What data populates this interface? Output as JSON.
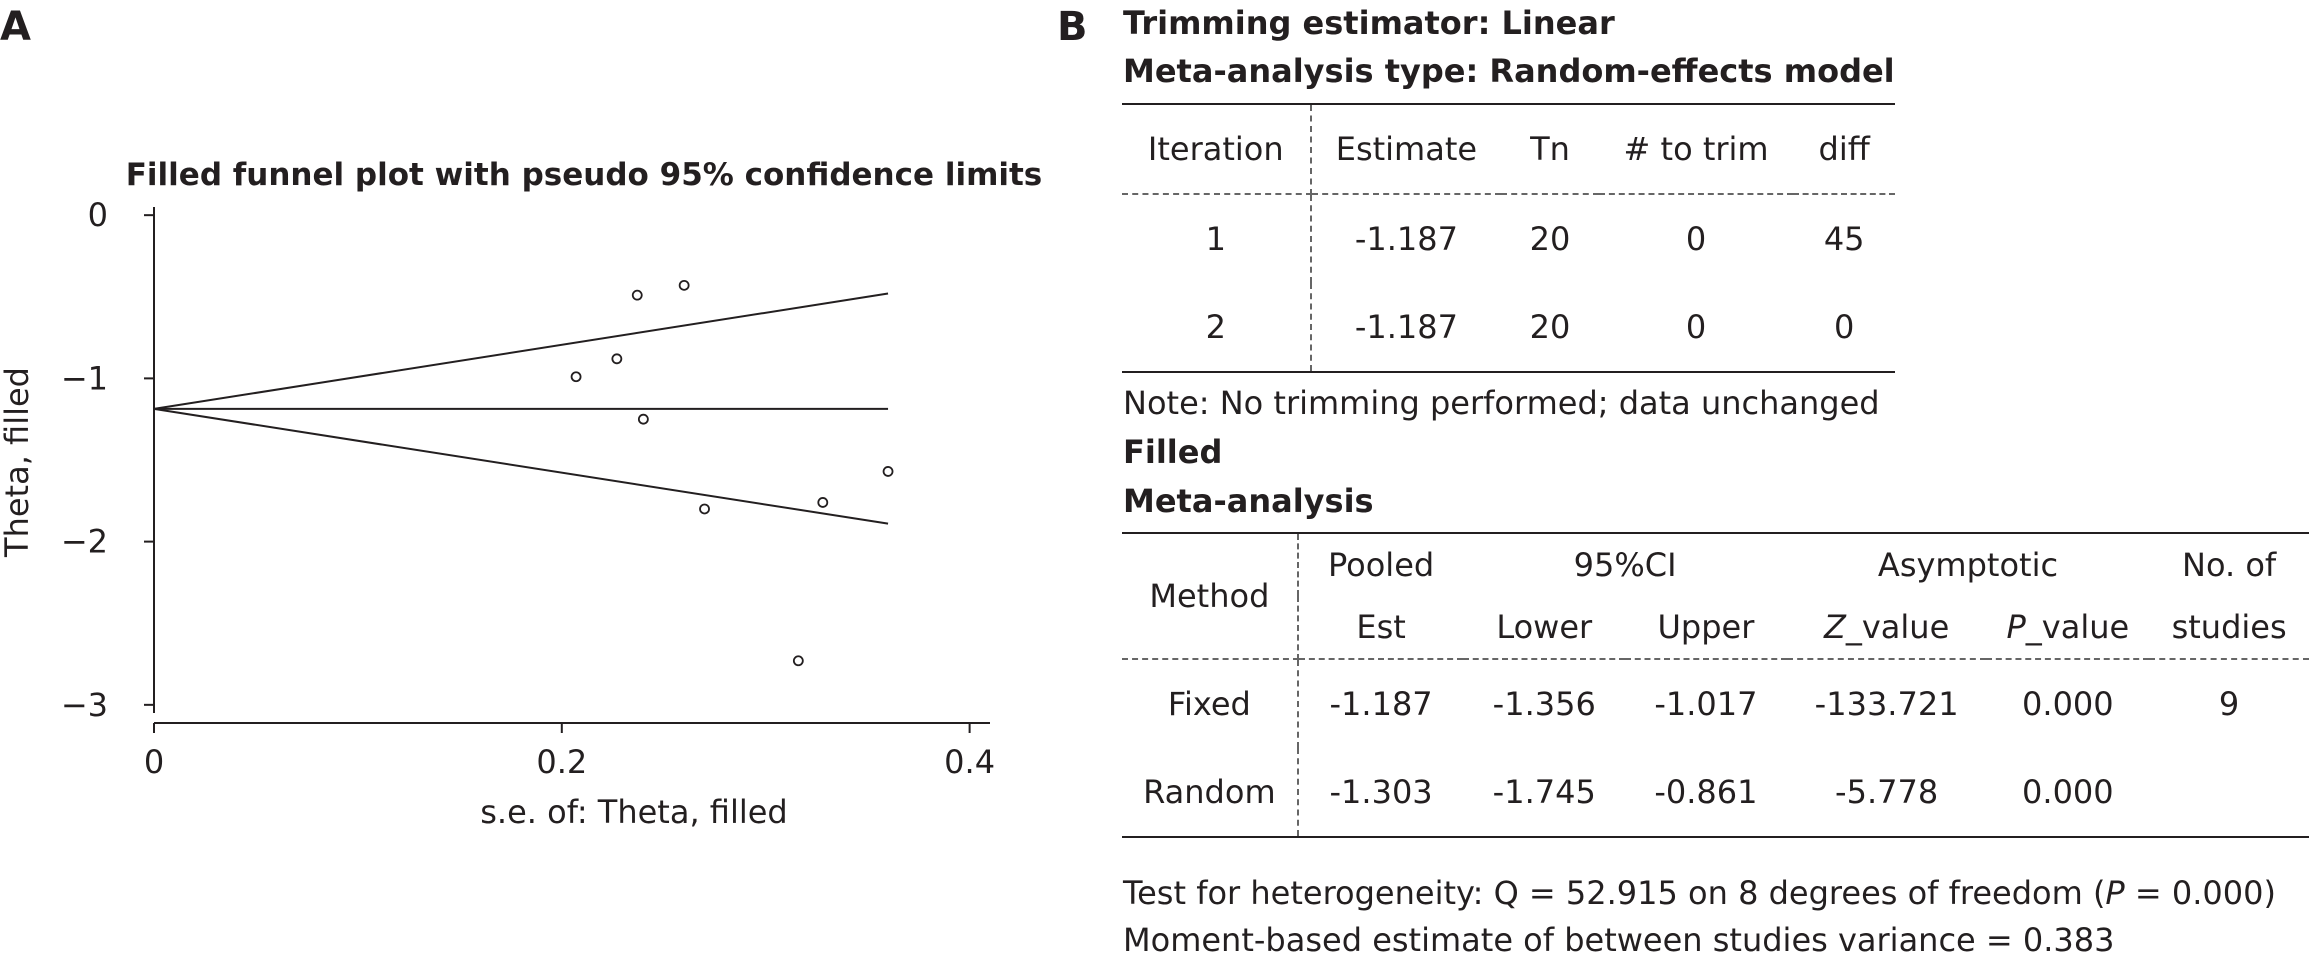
{
  "panel_a": {
    "label": "A",
    "chart_data": {
      "type": "scatter",
      "title": "Filled funnel plot with pseudo 95% confidence limits",
      "xlabel": "s.e. of: Theta, filled",
      "ylabel": "Theta, filled",
      "xlim": [
        0,
        0.41
      ],
      "ylim": [
        -3.05,
        0.05
      ],
      "x_ticks": [
        0,
        0.2,
        0.4
      ],
      "x_tick_labels": [
        "0",
        "0.2",
        "0.4"
      ],
      "y_ticks": [
        0,
        -1,
        -2,
        -3
      ],
      "y_tick_labels": [
        "0",
        "−1",
        "−2",
        "−3"
      ],
      "pooled_estimate": -1.187,
      "limit_lines_max_se": 0.36,
      "upper_limit_end": -0.48,
      "lower_limit_end": -1.89,
      "points": [
        {
          "x": 0.237,
          "y": -0.49
        },
        {
          "x": 0.26,
          "y": -0.43
        },
        {
          "x": 0.227,
          "y": -0.88
        },
        {
          "x": 0.207,
          "y": -0.99
        },
        {
          "x": 0.24,
          "y": -1.25
        },
        {
          "x": 0.27,
          "y": -1.8
        },
        {
          "x": 0.328,
          "y": -1.76
        },
        {
          "x": 0.36,
          "y": -1.57
        },
        {
          "x": 0.316,
          "y": -2.73
        }
      ]
    }
  },
  "panel_b": {
    "label": "B",
    "trim_title": "Trimming estimator: Linear",
    "model_title": "Meta-analysis type: Random-effects model",
    "iter_table": {
      "headers": [
        "Iteration",
        "Estimate",
        "Tn",
        "# to trim",
        "diff"
      ],
      "rows": [
        [
          "1",
          "-1.187",
          "20",
          "0",
          "45"
        ],
        [
          "2",
          "-1.187",
          "20",
          "0",
          "0"
        ]
      ]
    },
    "note": "Note: No trimming performed; data unchanged",
    "filled_title": "Filled",
    "meta_title": "Meta-analysis",
    "meta_table": {
      "method_header": "Method",
      "pooled_header": "Pooled",
      "ci_header": "95%CI",
      "asymptotic_header": "Asymptotic",
      "studies_header": "No. of",
      "est_header": "Est",
      "lower_header": "Lower",
      "upper_header": "Upper",
      "z_prefix": "Z",
      "z_suffix": "_value",
      "p_prefix": "P",
      "p_suffix": "_value",
      "studies_header2": "studies",
      "rows": [
        [
          "Fixed",
          "-1.187",
          "-1.356",
          "-1.017",
          "-133.721",
          "0.000",
          "9"
        ],
        [
          "Random",
          "-1.303",
          "-1.745",
          "-0.861",
          "-5.778",
          "0.000",
          ""
        ]
      ]
    },
    "heterogeneity_prefix": "Test for heterogeneity: Q = 52.915 on 8 degrees of freedom (",
    "heterogeneity_p": "P",
    "heterogeneity_suffix": " = 0.000)",
    "moment_text": "Moment-based estimate of between studies variance = 0.383"
  }
}
